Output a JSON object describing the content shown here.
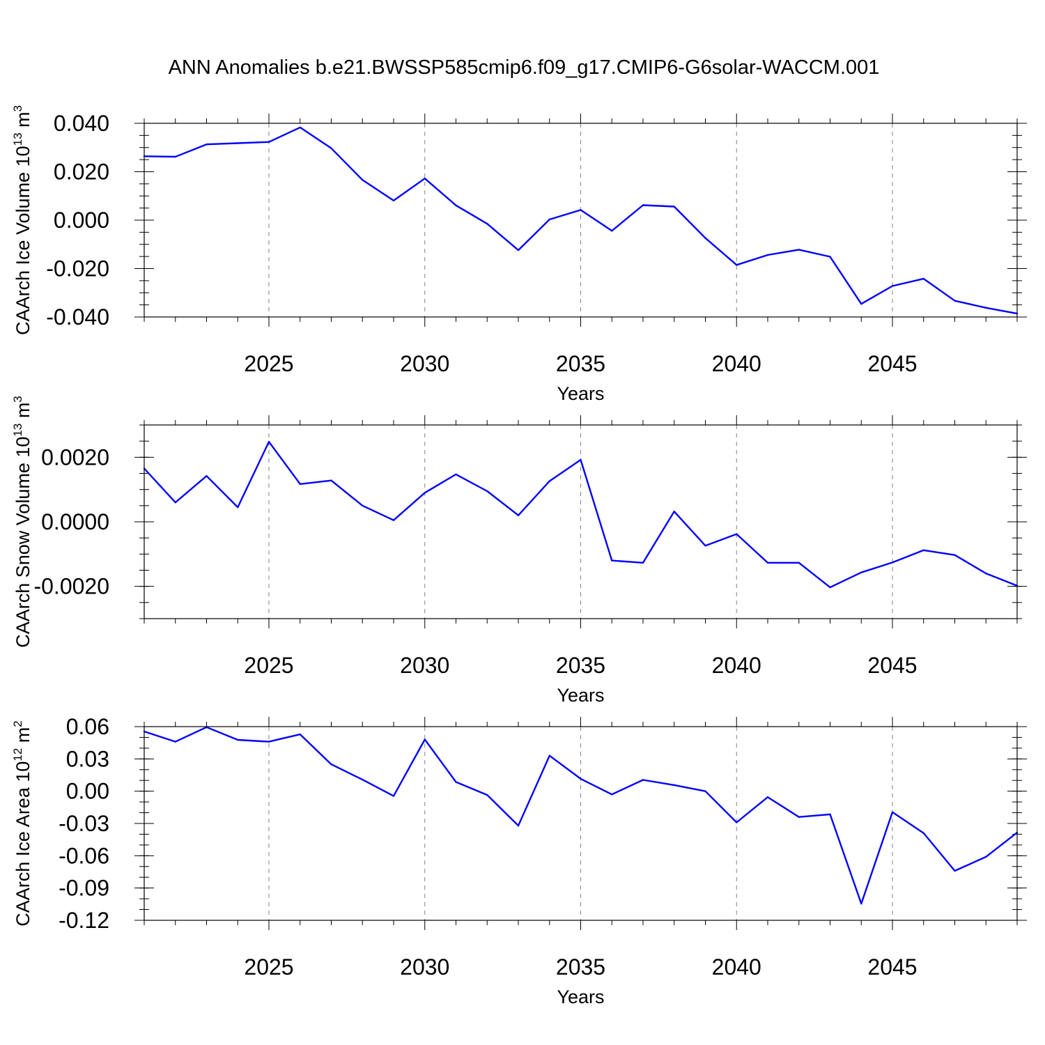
{
  "title": "ANN Anomalies b.e21.BWSSP585cmip6.f09_g17.CMIP6-G6solar-WACCM.001",
  "colors": {
    "line": "#0000ff",
    "grid": "#808080",
    "axes": "#000000",
    "background": "#ffffff"
  },
  "chart_data": [
    {
      "type": "line",
      "ylabel": "CAArch Ice Volume 10",
      "ylabel_sup": "13",
      "ylabel_unit": " m",
      "ylabel_unit_sup": "3",
      "xlabel": "Years",
      "xlim": [
        2021,
        2049
      ],
      "ylim": [
        -0.04,
        0.04
      ],
      "xticks": [
        2025,
        2030,
        2035,
        2040,
        2045
      ],
      "xtick_labels": [
        "2025",
        "2030",
        "2035",
        "2040",
        "2045"
      ],
      "yticks": [
        -0.04,
        -0.02,
        0.0,
        0.02,
        0.04
      ],
      "ytick_labels": [
        "-0.040",
        "-0.020",
        "0.000",
        "0.020",
        "0.040"
      ],
      "yminor_step": 0.005,
      "x": [
        2021,
        2022,
        2023,
        2024,
        2025,
        2026,
        2027,
        2028,
        2029,
        2030,
        2031,
        2032,
        2033,
        2034,
        2035,
        2036,
        2037,
        2038,
        2039,
        2040,
        2041,
        2042,
        2043,
        2044,
        2045,
        2046,
        2047,
        2048,
        2049
      ],
      "values": [
        0.0264,
        0.0262,
        0.0313,
        0.0318,
        0.0323,
        0.0383,
        0.0297,
        0.0166,
        0.0081,
        0.0172,
        0.0061,
        -0.0015,
        -0.0124,
        0.0003,
        0.0042,
        -0.0044,
        0.0062,
        0.0056,
        -0.0074,
        -0.0185,
        -0.0144,
        -0.0122,
        -0.0151,
        -0.0346,
        -0.0272,
        -0.0242,
        -0.0333,
        -0.0362,
        -0.0386
      ],
      "grid": "dashed vertical at major x ticks"
    },
    {
      "type": "line",
      "ylabel": "CAArch Snow Volume 10",
      "ylabel_sup": "13",
      "ylabel_unit": " m",
      "ylabel_unit_sup": "3",
      "xlabel": "Years",
      "xlim": [
        2021,
        2049
      ],
      "ylim": [
        -0.003,
        0.003
      ],
      "xticks": [
        2025,
        2030,
        2035,
        2040,
        2045
      ],
      "xtick_labels": [
        "2025",
        "2030",
        "2035",
        "2040",
        "2045"
      ],
      "yticks": [
        -0.002,
        0.0,
        0.002
      ],
      "ytick_labels": [
        "-0.0020",
        "0.0000",
        "0.0020"
      ],
      "yminor_step": 0.0005,
      "x": [
        2021,
        2022,
        2023,
        2024,
        2025,
        2026,
        2027,
        2028,
        2029,
        2030,
        2031,
        2032,
        2033,
        2034,
        2035,
        2036,
        2037,
        2038,
        2039,
        2040,
        2041,
        2042,
        2043,
        2044,
        2045,
        2046,
        2047,
        2048,
        2049
      ],
      "values": [
        0.00165,
        0.0006,
        0.00142,
        0.00045,
        0.00248,
        0.00117,
        0.00128,
        0.0005,
        5e-05,
        0.0009,
        0.00147,
        0.00095,
        0.0002,
        0.00126,
        0.00192,
        -0.0012,
        -0.00127,
        0.00032,
        -0.00074,
        -0.00038,
        -0.00127,
        -0.00127,
        -0.00203,
        -0.00157,
        -0.00126,
        -0.00088,
        -0.00103,
        -0.0016,
        -0.00198
      ],
      "grid": "dashed vertical at major x ticks"
    },
    {
      "type": "line",
      "ylabel": "CAArch Ice Area 10",
      "ylabel_sup": "12",
      "ylabel_unit": " m",
      "ylabel_unit_sup": "2",
      "xlabel": "Years",
      "xlim": [
        2021,
        2049
      ],
      "ylim": [
        -0.12,
        0.06
      ],
      "xticks": [
        2025,
        2030,
        2035,
        2040,
        2045
      ],
      "xtick_labels": [
        "2025",
        "2030",
        "2035",
        "2040",
        "2045"
      ],
      "yticks": [
        -0.12,
        -0.09,
        -0.06,
        -0.03,
        0.0,
        0.03,
        0.06
      ],
      "ytick_labels": [
        "-0.12",
        "-0.09",
        "-0.06",
        "-0.03",
        "0.00",
        "0.03",
        "0.06"
      ],
      "yminor_step": 0.01,
      "x": [
        2021,
        2022,
        2023,
        2024,
        2025,
        2026,
        2027,
        2028,
        2029,
        2030,
        2031,
        2032,
        2033,
        2034,
        2035,
        2036,
        2037,
        2038,
        2039,
        2040,
        2041,
        2042,
        2043,
        2044,
        2045,
        2046,
        2047,
        2048,
        2049
      ],
      "values": [
        0.0555,
        0.046,
        0.0595,
        0.0477,
        0.046,
        0.0528,
        0.025,
        0.0107,
        -0.0045,
        0.048,
        0.0085,
        -0.0035,
        -0.032,
        0.033,
        0.0115,
        -0.003,
        0.0105,
        0.0057,
        0.0,
        -0.029,
        -0.0055,
        -0.024,
        -0.0215,
        -0.1045,
        -0.0195,
        -0.039,
        -0.074,
        -0.061,
        -0.0385
      ],
      "grid": "dashed vertical at major x ticks"
    }
  ]
}
